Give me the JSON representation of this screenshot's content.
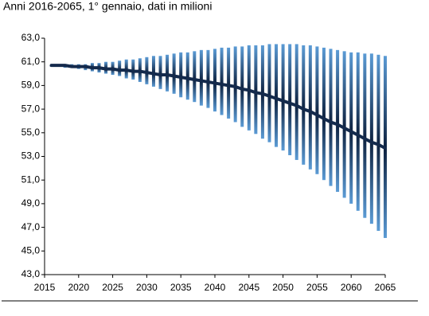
{
  "chart_data": {
    "type": "fan",
    "title": "Anni 2016-2065, 1° gennaio, dati in milioni",
    "x": [
      2016,
      2017,
      2018,
      2019,
      2020,
      2021,
      2022,
      2023,
      2024,
      2025,
      2026,
      2027,
      2028,
      2029,
      2030,
      2031,
      2032,
      2033,
      2034,
      2035,
      2036,
      2037,
      2038,
      2039,
      2040,
      2041,
      2042,
      2043,
      2044,
      2045,
      2046,
      2047,
      2048,
      2049,
      2050,
      2051,
      2052,
      2053,
      2054,
      2055,
      2056,
      2057,
      2058,
      2059,
      2060,
      2061,
      2062,
      2063,
      2064,
      2065
    ],
    "median": [
      60.7,
      60.7,
      60.7,
      60.6,
      60.6,
      60.6,
      60.5,
      60.5,
      60.4,
      60.4,
      60.3,
      60.3,
      60.2,
      60.2,
      60.1,
      60.0,
      59.9,
      59.9,
      59.8,
      59.7,
      59.6,
      59.5,
      59.4,
      59.3,
      59.2,
      59.1,
      59.0,
      58.9,
      58.7,
      58.6,
      58.4,
      58.3,
      58.1,
      57.9,
      57.7,
      57.5,
      57.3,
      57.0,
      56.8,
      56.5,
      56.2,
      55.9,
      55.7,
      55.4,
      55.1,
      54.8,
      54.5,
      54.2,
      54.0,
      53.7
    ],
    "high": [
      60.7,
      60.7,
      60.7,
      60.8,
      60.8,
      60.8,
      60.9,
      60.9,
      61.0,
      61.0,
      61.1,
      61.2,
      61.2,
      61.3,
      61.4,
      61.5,
      61.5,
      61.6,
      61.7,
      61.8,
      61.8,
      61.9,
      62.0,
      62.0,
      62.1,
      62.2,
      62.2,
      62.3,
      62.3,
      62.4,
      62.4,
      62.4,
      62.5,
      62.5,
      62.5,
      62.5,
      62.5,
      62.4,
      62.4,
      62.3,
      62.2,
      62.1,
      62.0,
      61.9,
      61.8,
      61.8,
      61.7,
      61.7,
      61.6,
      61.5
    ],
    "low": [
      60.6,
      60.6,
      60.5,
      60.5,
      60.4,
      60.3,
      60.2,
      60.1,
      60.0,
      59.9,
      59.8,
      59.6,
      59.5,
      59.3,
      59.1,
      58.9,
      58.7,
      58.5,
      58.3,
      58.0,
      57.8,
      57.6,
      57.3,
      57.1,
      56.8,
      56.5,
      56.2,
      55.9,
      55.5,
      55.2,
      54.9,
      54.5,
      54.2,
      53.8,
      53.5,
      53.1,
      52.7,
      52.3,
      51.9,
      51.5,
      51.0,
      50.5,
      50.0,
      49.5,
      49.0,
      48.4,
      47.8,
      47.3,
      46.7,
      46.1
    ],
    "bar_color": "#5b9bd5",
    "center_color": "#0e2240",
    "line_color": "#142a4c",
    "xlim": [
      2015,
      2065
    ],
    "xticks": [
      2015,
      2020,
      2025,
      2030,
      2035,
      2040,
      2045,
      2050,
      2055,
      2060,
      2065
    ],
    "ylim": [
      43,
      63
    ],
    "yticks": [
      {
        "value": 43,
        "label": "43,0"
      },
      {
        "value": 45,
        "label": "45,0"
      },
      {
        "value": 47,
        "label": "47,0"
      },
      {
        "value": 49,
        "label": "49,0"
      },
      {
        "value": 51,
        "label": "51,0"
      },
      {
        "value": 53,
        "label": "53,0"
      },
      {
        "value": 55,
        "label": "55,0"
      },
      {
        "value": 57,
        "label": "57,0"
      },
      {
        "value": 59,
        "label": "59,0"
      },
      {
        "value": 61,
        "label": "61,0"
      },
      {
        "value": 63,
        "label": "63,0"
      }
    ]
  }
}
